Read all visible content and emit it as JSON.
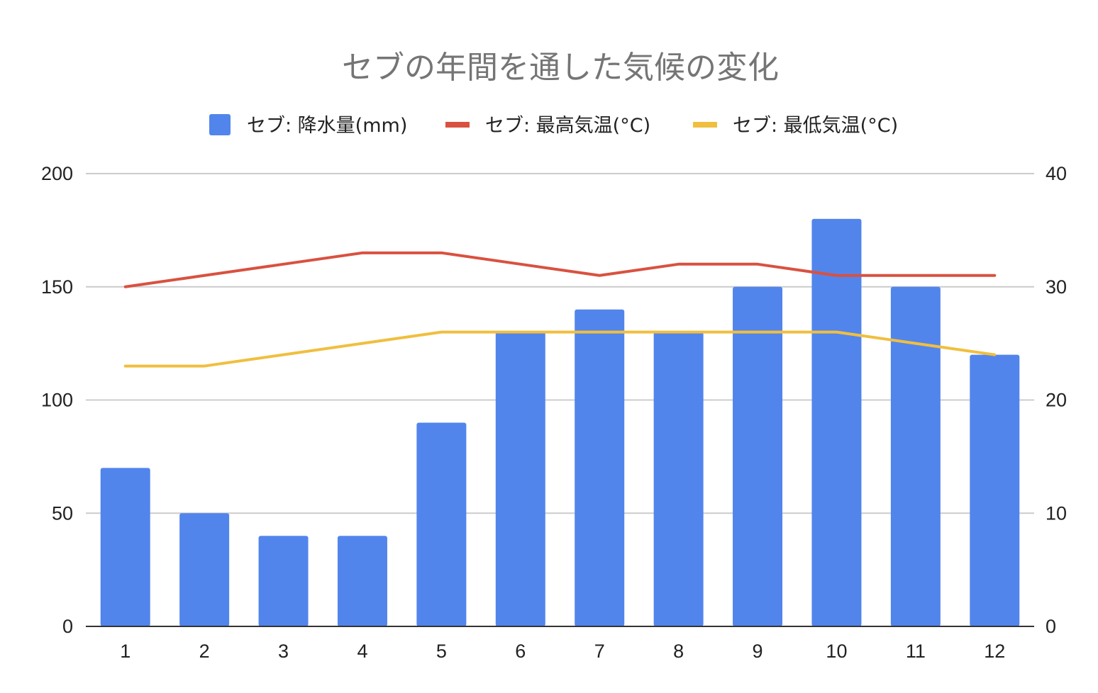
{
  "chart_data": {
    "type": "bar",
    "title": "セブの年間を通した気候の変化",
    "categories": [
      "1",
      "2",
      "3",
      "4",
      "5",
      "6",
      "7",
      "8",
      "9",
      "10",
      "11",
      "12"
    ],
    "series": [
      {
        "name": "セブ: 降水量(mm)",
        "type": "bar",
        "axis": "left",
        "color": "#5285ec",
        "values": [
          70,
          50,
          40,
          40,
          90,
          130,
          140,
          130,
          150,
          180,
          150,
          120
        ]
      },
      {
        "name": "セブ: 最高気温(°C)",
        "type": "line",
        "axis": "right",
        "color": "#d95140",
        "values": [
          30,
          31,
          32,
          33,
          33,
          32,
          31,
          32,
          32,
          31,
          31,
          31
        ]
      },
      {
        "name": "セブ: 最低気温(°C)",
        "type": "line",
        "axis": "right",
        "color": "#f0bf3f",
        "values": [
          23,
          23,
          24,
          25,
          26,
          26,
          26,
          26,
          26,
          26,
          25,
          24
        ]
      }
    ],
    "y_left": {
      "range": [
        0,
        200
      ],
      "ticks": [
        "0",
        "50",
        "100",
        "150",
        "200"
      ]
    },
    "y_right": {
      "range": [
        0,
        40
      ],
      "ticks": [
        "0",
        "10",
        "20",
        "30",
        "40"
      ]
    },
    "grid": true,
    "legend_position": "top"
  }
}
